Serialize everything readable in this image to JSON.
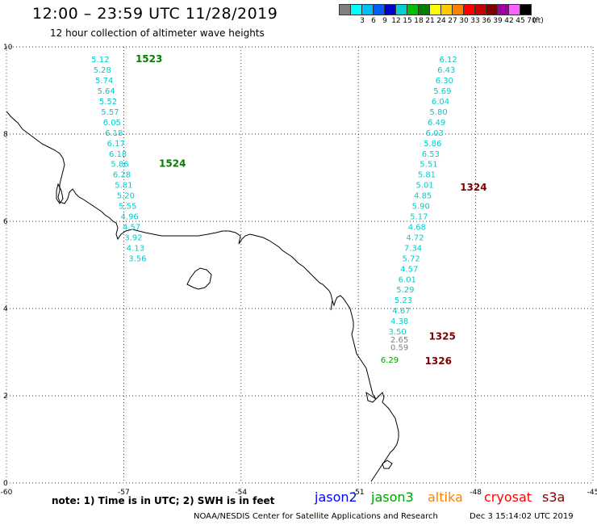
{
  "header": {
    "title": "12:00 – 23:59 UTC 11/28/2019",
    "subtitle": "12 hour collection of altimeter wave heights"
  },
  "legend": {
    "unit_label": "(ft)",
    "bins": [
      {
        "label": "",
        "color": "#808080"
      },
      {
        "label": "3",
        "color": "#00ffff"
      },
      {
        "label": "6",
        "color": "#00bfff"
      },
      {
        "label": "9",
        "color": "#0060ff"
      },
      {
        "label": "12",
        "color": "#0000c8"
      },
      {
        "label": "15",
        "color": "#00d0d0"
      },
      {
        "label": "18",
        "color": "#00c000"
      },
      {
        "label": "21",
        "color": "#008000"
      },
      {
        "label": "24",
        "color": "#ffff00"
      },
      {
        "label": "27",
        "color": "#ffc800"
      },
      {
        "label": "30",
        "color": "#ff8000"
      },
      {
        "label": "33",
        "color": "#ff0000"
      },
      {
        "label": "36",
        "color": "#c80000"
      },
      {
        "label": "39",
        "color": "#800000"
      },
      {
        "label": "42",
        "color": "#a000a0"
      },
      {
        "label": "45",
        "color": "#ff60ff"
      },
      {
        "label": "70",
        "color": "#000000"
      }
    ]
  },
  "axes": {
    "x_ticks": [
      "-60",
      "-57",
      "-54",
      "-51",
      "-48",
      "-45"
    ],
    "y_ticks": [
      "0",
      "2",
      "4",
      "6",
      "8",
      "10"
    ],
    "lon_range": [
      -60,
      -45
    ],
    "lat_range": [
      0,
      10
    ]
  },
  "colors": {
    "cyan_value": "#00cccc",
    "green_pass": "#007f00",
    "dark_red_pass": "#7f0000",
    "gray_value": "#808080",
    "green_value": "#00a000",
    "jason2": "#0000ff",
    "jason3": "#00a000",
    "altika": "#ff8000",
    "cryosat": "#ff0000",
    "s3a": "#7f0000"
  },
  "tracks": [
    {
      "pass_label": "1523",
      "pass_color": "#007f00",
      "points": [
        {
          "lon": -57.6,
          "lat": 9.72,
          "value": "5.12",
          "color": "#00cccc"
        },
        {
          "lon": -57.55,
          "lat": 9.48,
          "value": "5.28",
          "color": "#00cccc"
        },
        {
          "lon": -57.5,
          "lat": 9.24,
          "value": "5.74",
          "color": "#00cccc"
        },
        {
          "lon": -57.45,
          "lat": 9.0,
          "value": "5.64",
          "color": "#00cccc"
        },
        {
          "lon": -57.4,
          "lat": 8.76,
          "value": "5.52",
          "color": "#00cccc"
        },
        {
          "lon": -57.35,
          "lat": 8.52,
          "value": "5.57",
          "color": "#00cccc"
        },
        {
          "lon": -57.3,
          "lat": 8.28,
          "value": "6.05",
          "color": "#00cccc"
        },
        {
          "lon": -57.25,
          "lat": 8.04,
          "value": "6.18",
          "color": "#00cccc"
        },
        {
          "lon": -57.2,
          "lat": 7.8,
          "value": "6.17",
          "color": "#00cccc"
        },
        {
          "lon": -57.15,
          "lat": 7.56,
          "value": "6.18",
          "color": "#00cccc"
        },
        {
          "lon": -57.1,
          "lat": 7.32,
          "value": "5.86",
          "color": "#00cccc"
        },
        {
          "lon": -57.05,
          "lat": 7.08,
          "value": "6.28",
          "color": "#00cccc"
        },
        {
          "lon": -57.0,
          "lat": 6.84,
          "value": "5.81",
          "color": "#00cccc"
        },
        {
          "lon": -56.95,
          "lat": 6.6,
          "value": "5.20",
          "color": "#00cccc"
        },
        {
          "lon": -56.9,
          "lat": 6.36,
          "value": "5.55",
          "color": "#00cccc"
        },
        {
          "lon": -56.85,
          "lat": 6.12,
          "value": "4.96",
          "color": "#00cccc"
        },
        {
          "lon": -56.8,
          "lat": 5.88,
          "value": "4.57",
          "color": "#00cccc"
        },
        {
          "lon": -56.75,
          "lat": 5.64,
          "value": "3.92",
          "color": "#00cccc"
        },
        {
          "lon": -56.7,
          "lat": 5.4,
          "value": "4.13",
          "color": "#00cccc"
        },
        {
          "lon": -56.65,
          "lat": 5.16,
          "value": "3.56",
          "color": "#00cccc"
        }
      ]
    },
    {
      "pass_label": "1524",
      "pass_color": "#007f00",
      "points": []
    },
    {
      "pass_label": "1324",
      "pass_color": "#7f0000",
      "points": [
        {
          "lon": -48.7,
          "lat": 9.72,
          "value": "6.12",
          "color": "#00cccc"
        },
        {
          "lon": -48.75,
          "lat": 9.48,
          "value": "6.43",
          "color": "#00cccc"
        },
        {
          "lon": -48.8,
          "lat": 9.24,
          "value": "6.30",
          "color": "#00cccc"
        },
        {
          "lon": -48.85,
          "lat": 9.0,
          "value": "5.69",
          "color": "#00cccc"
        },
        {
          "lon": -48.9,
          "lat": 8.76,
          "value": "6.04",
          "color": "#00cccc"
        },
        {
          "lon": -48.95,
          "lat": 8.52,
          "value": "5.80",
          "color": "#00cccc"
        },
        {
          "lon": -49.0,
          "lat": 8.28,
          "value": "6.49",
          "color": "#00cccc"
        },
        {
          "lon": -49.05,
          "lat": 8.04,
          "value": "6.03",
          "color": "#00cccc"
        },
        {
          "lon": -49.1,
          "lat": 7.8,
          "value": "5.86",
          "color": "#00cccc"
        },
        {
          "lon": -49.15,
          "lat": 7.56,
          "value": "6.53",
          "color": "#00cccc"
        },
        {
          "lon": -49.2,
          "lat": 7.32,
          "value": "5.51",
          "color": "#00cccc"
        },
        {
          "lon": -49.25,
          "lat": 7.08,
          "value": "5.81",
          "color": "#00cccc"
        },
        {
          "lon": -49.3,
          "lat": 6.84,
          "value": "5.01",
          "color": "#00cccc"
        },
        {
          "lon": -49.35,
          "lat": 6.6,
          "value": "4.85",
          "color": "#00cccc"
        },
        {
          "lon": -49.4,
          "lat": 6.36,
          "value": "5.90",
          "color": "#00cccc"
        },
        {
          "lon": -49.45,
          "lat": 6.12,
          "value": "5.17",
          "color": "#00cccc"
        },
        {
          "lon": -49.5,
          "lat": 5.88,
          "value": "4.68",
          "color": "#00cccc"
        },
        {
          "lon": -49.55,
          "lat": 5.64,
          "value": "4.72",
          "color": "#00cccc"
        },
        {
          "lon": -49.6,
          "lat": 5.4,
          "value": "7.34",
          "color": "#00cccc"
        },
        {
          "lon": -49.65,
          "lat": 5.16,
          "value": "5.72",
          "color": "#00cccc"
        },
        {
          "lon": -49.7,
          "lat": 4.92,
          "value": "4.57",
          "color": "#00cccc"
        },
        {
          "lon": -49.75,
          "lat": 4.68,
          "value": "6.01",
          "color": "#00cccc"
        },
        {
          "lon": -49.8,
          "lat": 4.44,
          "value": "5.29",
          "color": "#00cccc"
        },
        {
          "lon": -49.85,
          "lat": 4.2,
          "value": "5.23",
          "color": "#00cccc"
        },
        {
          "lon": -49.9,
          "lat": 3.96,
          "value": "4.67",
          "color": "#00cccc"
        },
        {
          "lon": -49.95,
          "lat": 3.72,
          "value": "4.38",
          "color": "#00cccc"
        },
        {
          "lon": -50.0,
          "lat": 3.48,
          "value": "3.50",
          "color": "#00cccc"
        }
      ]
    },
    {
      "pass_label": "1325",
      "pass_color": "#7f0000",
      "points": [
        {
          "lon": -49.95,
          "lat": 3.3,
          "value": "2.65",
          "color": "#808080"
        },
        {
          "lon": -49.95,
          "lat": 3.12,
          "value": "0.59",
          "color": "#808080"
        }
      ]
    },
    {
      "pass_label": "1326",
      "pass_color": "#7f0000",
      "points": [
        {
          "lon": -50.2,
          "lat": 2.83,
          "value": "6.29",
          "color": "#00a000"
        }
      ]
    }
  ],
  "footer": {
    "note": "note:  1) Time is in UTC;  2) SWH is in feet",
    "missions": [
      "jason2",
      "jason3",
      "altika",
      "cryosat",
      "s3a"
    ],
    "credit": "NOAA/NESDIS Center for Satellite Applications and Research",
    "generated": "Dec  3 15:14:02 UTC 2019"
  }
}
